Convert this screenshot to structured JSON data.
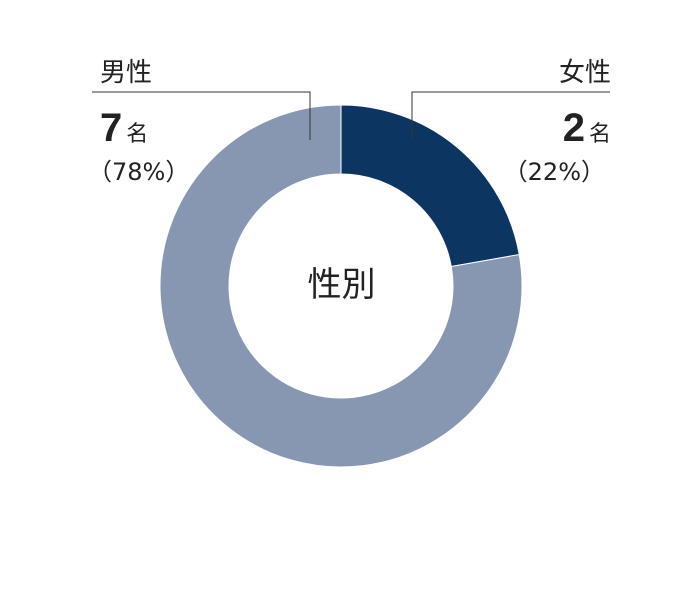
{
  "chart_data": {
    "type": "pie",
    "title": "性別",
    "categories": [
      "女性",
      "男性"
    ],
    "values": [
      2,
      7
    ],
    "percentages": [
      "22%",
      "78%"
    ],
    "unit": "名",
    "colors": [
      "#0d3561",
      "#8797b2"
    ]
  },
  "labels": {
    "left": {
      "category": "男性",
      "count": "7",
      "unit": "名",
      "percent": "（78%）"
    },
    "right": {
      "category": "女性",
      "count": "2",
      "unit": "名",
      "percent": "（22%）"
    }
  }
}
